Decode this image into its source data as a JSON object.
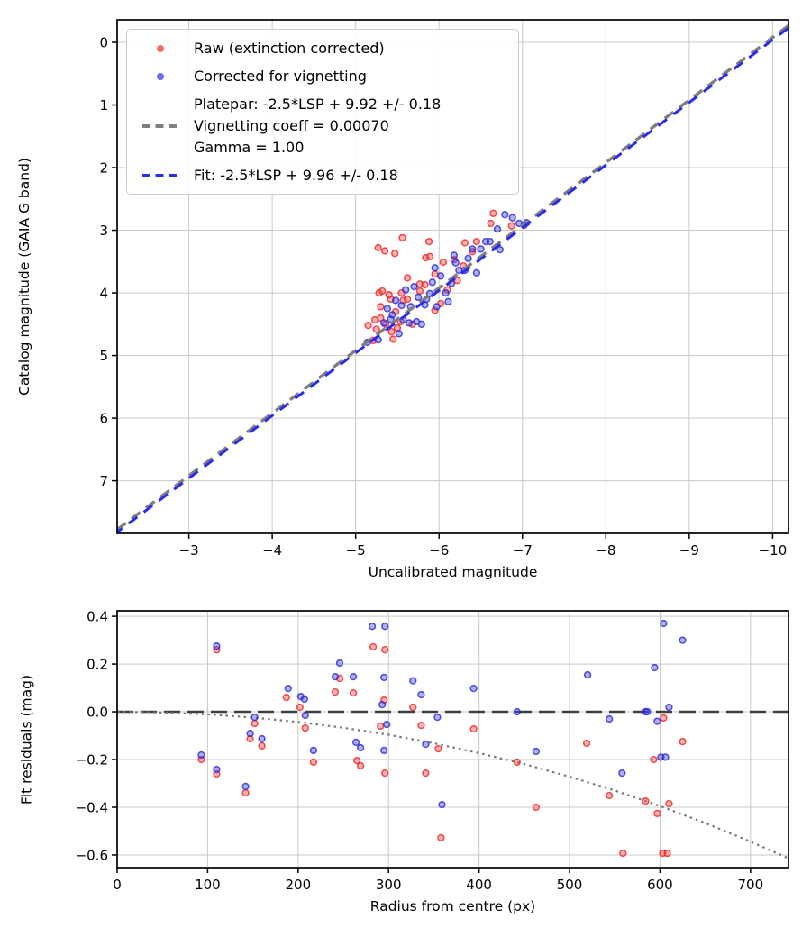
{
  "figure": {
    "background": "#ffffff"
  },
  "colors": {
    "raw_marker": "#ff4a4a",
    "raw_marker_edge": "#ee2222",
    "corrected_marker": "#4646f0",
    "corrected_marker_edge": "#2525d8",
    "platepar_line": "#7f7f7f",
    "fit_line": "#2b2bee",
    "zero_line": "#3f3f3f",
    "model_curve": "#787878",
    "grid": "#c9c9c9",
    "spine": "#000000",
    "text": "#000000"
  },
  "chart_data": [
    {
      "type": "scatter",
      "title": "",
      "xlabel": "Uncalibrated magnitude",
      "ylabel": "Catalog magnitude (GAIA G band)",
      "x_range": [
        -2.14,
        -10.19
      ],
      "y_range": [
        -0.36,
        7.84
      ],
      "x_inverted": true,
      "y_inverted": true,
      "grid": true,
      "x_ticks": [
        {
          "v": -3,
          "label": "−3"
        },
        {
          "v": -4,
          "label": "−4"
        },
        {
          "v": -5,
          "label": "−5"
        },
        {
          "v": -6,
          "label": "−6"
        },
        {
          "v": -7,
          "label": "−7"
        },
        {
          "v": -8,
          "label": "−8"
        },
        {
          "v": -9,
          "label": "−9"
        },
        {
          "v": -10,
          "label": "−10"
        }
      ],
      "y_ticks": [
        {
          "v": 0,
          "label": "0"
        },
        {
          "v": 1,
          "label": "1"
        },
        {
          "v": 2,
          "label": "2"
        },
        {
          "v": 3,
          "label": "3"
        },
        {
          "v": 4,
          "label": "4"
        },
        {
          "v": 5,
          "label": "5"
        },
        {
          "v": 6,
          "label": "6"
        },
        {
          "v": 7,
          "label": "7"
        }
      ],
      "series": [
        {
          "id": "raw",
          "kind": "scatter",
          "marker_fill": "#ff4a4a",
          "marker_stroke": "#ee2222",
          "points": [
            [
              -5.15,
              4.52
            ],
            [
              -5.21,
              4.76
            ],
            [
              -5.23,
              4.43
            ],
            [
              -5.25,
              4.58
            ],
            [
              -5.27,
              3.28
            ],
            [
              -5.28,
              4.0
            ],
            [
              -5.3,
              4.4
            ],
            [
              -5.3,
              4.22
            ],
            [
              -5.32,
              3.97
            ],
            [
              -5.35,
              3.33
            ],
            [
              -5.36,
              4.5
            ],
            [
              -5.4,
              4.03
            ],
            [
              -5.42,
              4.1
            ],
            [
              -5.43,
              4.62
            ],
            [
              -5.45,
              4.74
            ],
            [
              -5.47,
              3.37
            ],
            [
              -5.48,
              4.3
            ],
            [
              -5.5,
              4.56
            ],
            [
              -5.54,
              4.46
            ],
            [
              -5.55,
              4.0
            ],
            [
              -5.56,
              3.12
            ],
            [
              -5.57,
              4.12
            ],
            [
              -5.62,
              4.1
            ],
            [
              -5.62,
              3.76
            ],
            [
              -5.68,
              4.5
            ],
            [
              -5.77,
              3.97
            ],
            [
              -5.77,
              3.86
            ],
            [
              -5.83,
              3.87
            ],
            [
              -5.84,
              3.44
            ],
            [
              -5.88,
              3.18
            ],
            [
              -5.89,
              3.42
            ],
            [
              -5.95,
              3.7
            ],
            [
              -5.95,
              4.28
            ],
            [
              -6.02,
              4.17
            ],
            [
              -6.05,
              3.51
            ],
            [
              -6.1,
              3.95
            ],
            [
              -6.18,
              3.47
            ],
            [
              -6.22,
              3.8
            ],
            [
              -6.29,
              3.57
            ],
            [
              -6.31,
              3.2
            ],
            [
              -6.4,
              3.34
            ],
            [
              -6.45,
              3.18
            ],
            [
              -6.62,
              2.89
            ],
            [
              -6.65,
              2.73
            ],
            [
              -6.87,
              2.93
            ]
          ]
        },
        {
          "id": "corrected",
          "kind": "scatter",
          "marker_fill": "#4646f0",
          "marker_stroke": "#2525d8",
          "points": [
            [
              -5.14,
              4.79
            ],
            [
              -5.27,
              4.75
            ],
            [
              -5.34,
              4.48
            ],
            [
              -5.38,
              4.25
            ],
            [
              -5.42,
              4.42
            ],
            [
              -5.44,
              4.35
            ],
            [
              -5.48,
              4.12
            ],
            [
              -5.52,
              4.65
            ],
            [
              -5.55,
              4.2
            ],
            [
              -5.57,
              4.43
            ],
            [
              -5.6,
              3.95
            ],
            [
              -5.64,
              4.48
            ],
            [
              -5.66,
              4.22
            ],
            [
              -5.7,
              3.9
            ],
            [
              -5.73,
              4.46
            ],
            [
              -5.75,
              4.07
            ],
            [
              -5.79,
              4.5
            ],
            [
              -5.83,
              4.19
            ],
            [
              -5.85,
              4.1
            ],
            [
              -5.89,
              4.01
            ],
            [
              -5.92,
              3.83
            ],
            [
              -5.95,
              3.6
            ],
            [
              -5.97,
              4.22
            ],
            [
              -6.02,
              3.73
            ],
            [
              -6.08,
              4.0
            ],
            [
              -6.11,
              4.14
            ],
            [
              -6.15,
              3.85
            ],
            [
              -6.18,
              3.4
            ],
            [
              -6.2,
              3.52
            ],
            [
              -6.24,
              3.64
            ],
            [
              -6.31,
              3.64
            ],
            [
              -6.35,
              3.45
            ],
            [
              -6.4,
              3.3
            ],
            [
              -6.45,
              3.68
            ],
            [
              -6.5,
              3.3
            ],
            [
              -6.56,
              3.18
            ],
            [
              -6.61,
              3.18
            ],
            [
              -6.7,
              2.98
            ],
            [
              -6.73,
              3.31
            ],
            [
              -6.79,
              2.75
            ],
            [
              -6.88,
              2.8
            ],
            [
              -6.96,
              2.89
            ],
            [
              -7.02,
              2.92
            ],
            [
              -7.05,
              2.88
            ]
          ]
        },
        {
          "id": "platepar_line",
          "kind": "line",
          "color": "#7f7f7f",
          "dash": "12 8",
          "width": 3.4,
          "points": [
            [
              -2.14,
              7.78
            ],
            [
              -10.19,
              -0.27
            ]
          ]
        },
        {
          "id": "fit_line",
          "kind": "line",
          "color": "#2b2bee",
          "dash": "12 9",
          "width": 3.0,
          "dashoffset": 5,
          "points": [
            [
              -2.14,
              7.82
            ],
            [
              -10.19,
              -0.23
            ]
          ]
        }
      ],
      "legend": {
        "position": "upper left",
        "entries": [
          {
            "marker": "dot-red",
            "label": "Raw (extinction corrected)"
          },
          {
            "marker": "dot-blue",
            "label": "Corrected for vignetting"
          },
          {
            "marker": "dash-gray",
            "label_lines": [
              "Platepar: -2.5*LSP + 9.92 +/- 0.18",
              "Vignetting coeff = 0.00070",
              "Gamma = 1.00"
            ]
          },
          {
            "marker": "dash-blue",
            "label": "Fit: -2.5*LSP + 9.96 +/- 0.18"
          }
        ]
      }
    },
    {
      "type": "scatter",
      "title": "",
      "xlabel": "Radius from centre (px)",
      "ylabel": "Fit residuals (mag)",
      "x_range": [
        0,
        742
      ],
      "y_range": [
        0.423,
        -0.653
      ],
      "grid": true,
      "x_ticks": [
        {
          "v": 0,
          "label": "0"
        },
        {
          "v": 100,
          "label": "100"
        },
        {
          "v": 200,
          "label": "200"
        },
        {
          "v": 300,
          "label": "300"
        },
        {
          "v": 400,
          "label": "400"
        },
        {
          "v": 500,
          "label": "500"
        },
        {
          "v": 600,
          "label": "600"
        },
        {
          "v": 700,
          "label": "700"
        }
      ],
      "y_ticks": [
        {
          "v": 0.4,
          "label": "0.4"
        },
        {
          "v": 0.2,
          "label": "0.2"
        },
        {
          "v": 0.0,
          "label": "0.0"
        },
        {
          "v": -0.2,
          "label": "−0.2"
        },
        {
          "v": -0.4,
          "label": "−0.4"
        },
        {
          "v": -0.6,
          "label": "−0.6"
        }
      ],
      "series": [
        {
          "id": "zero_line",
          "kind": "line",
          "color": "#3f3f3f",
          "dash": "18 8",
          "width": 2.6,
          "points": [
            [
              0,
              0
            ],
            [
              742,
              0
            ]
          ]
        },
        {
          "id": "vignetting_model_curve",
          "kind": "line",
          "color": "#787878",
          "dash": "2.5 4.2",
          "width": 2.2,
          "points": [
            [
              0,
              0
            ],
            [
              50,
              -0.003
            ],
            [
              100,
              -0.011
            ],
            [
              150,
              -0.024
            ],
            [
              200,
              -0.043
            ],
            [
              250,
              -0.067
            ],
            [
              300,
              -0.096
            ],
            [
              350,
              -0.132
            ],
            [
              400,
              -0.173
            ],
            [
              450,
              -0.219
            ],
            [
              500,
              -0.272
            ],
            [
              550,
              -0.33
            ],
            [
              600,
              -0.395
            ],
            [
              650,
              -0.466
            ],
            [
              700,
              -0.544
            ],
            [
              742,
              -0.614
            ]
          ]
        },
        {
          "id": "raw_residuals",
          "kind": "scatter",
          "marker_fill": "#ff4a4a",
          "marker_stroke": "#ee2222",
          "points": [
            [
              93,
              -0.2
            ],
            [
              110,
              0.26
            ],
            [
              110,
              -0.26
            ],
            [
              142,
              -0.34
            ],
            [
              147,
              -0.113
            ],
            [
              152,
              -0.049
            ],
            [
              160,
              -0.143
            ],
            [
              187,
              0.06
            ],
            [
              202,
              0.019
            ],
            [
              208,
              -0.068
            ],
            [
              217,
              -0.211
            ],
            [
              241,
              0.083
            ],
            [
              246,
              0.14
            ],
            [
              261,
              0.079
            ],
            [
              265,
              -0.204
            ],
            [
              269,
              -0.226
            ],
            [
              283,
              0.272
            ],
            [
              291,
              -0.06
            ],
            [
              295,
              0.049
            ],
            [
              296,
              0.26
            ],
            [
              296,
              -0.257
            ],
            [
              327,
              0.019
            ],
            [
              336,
              -0.057
            ],
            [
              341,
              -0.257
            ],
            [
              355,
              -0.155
            ],
            [
              358,
              -0.528
            ],
            [
              394,
              -0.072
            ],
            [
              442,
              -0.211
            ],
            [
              463,
              -0.4
            ],
            [
              519,
              -0.132
            ],
            [
              544,
              -0.351
            ],
            [
              559,
              -0.593
            ],
            [
              584,
              -0.374
            ],
            [
              593,
              -0.2
            ],
            [
              597,
              -0.426
            ],
            [
              603,
              -0.593
            ],
            [
              604,
              -0.026
            ],
            [
              608,
              -0.593
            ],
            [
              610,
              -0.385
            ],
            [
              625,
              -0.125
            ]
          ]
        },
        {
          "id": "corrected_residuals",
          "kind": "scatter",
          "marker_fill": "#4646f0",
          "marker_stroke": "#2525d8",
          "points": [
            [
              93,
              -0.181
            ],
            [
              110,
              0.275
            ],
            [
              110,
              -0.242
            ],
            [
              142,
              -0.313
            ],
            [
              147,
              -0.091
            ],
            [
              152,
              -0.023
            ],
            [
              160,
              -0.113
            ],
            [
              189,
              0.098
            ],
            [
              203,
              0.064
            ],
            [
              207,
              0.053
            ],
            [
              208,
              -0.015
            ],
            [
              217,
              -0.162
            ],
            [
              241,
              0.147
            ],
            [
              246,
              0.204
            ],
            [
              261,
              0.147
            ],
            [
              264,
              -0.128
            ],
            [
              269,
              -0.151
            ],
            [
              282,
              0.358
            ],
            [
              293,
              0.03
            ],
            [
              295,
              0.144
            ],
            [
              295,
              -0.162
            ],
            [
              296,
              0.358
            ],
            [
              298,
              -0.053
            ],
            [
              327,
              0.13
            ],
            [
              336,
              0.072
            ],
            [
              341,
              -0.136
            ],
            [
              354,
              -0.023
            ],
            [
              359,
              -0.389
            ],
            [
              394,
              0.098
            ],
            [
              442,
              0.0
            ],
            [
              463,
              -0.166
            ],
            [
              520,
              0.155
            ],
            [
              544,
              -0.03
            ],
            [
              558,
              -0.257
            ],
            [
              584,
              0.0
            ],
            [
              586,
              0.0
            ],
            [
              594,
              0.185
            ],
            [
              597,
              -0.04
            ],
            [
              601,
              -0.19
            ],
            [
              604,
              0.37
            ],
            [
              606,
              -0.19
            ],
            [
              610,
              0.019
            ],
            [
              625,
              0.3
            ]
          ]
        }
      ]
    }
  ]
}
